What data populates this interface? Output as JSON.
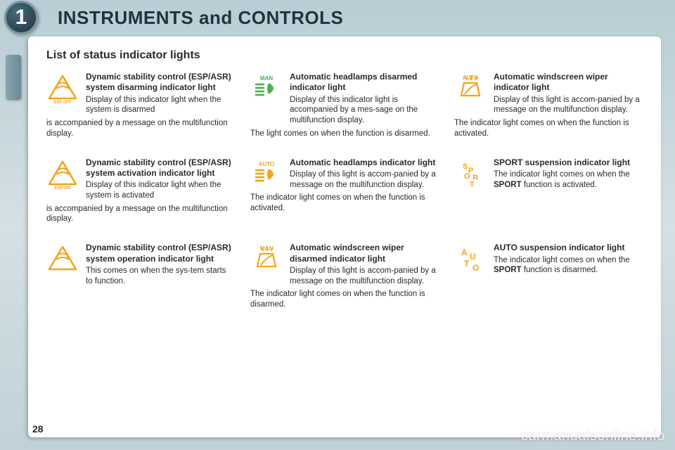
{
  "header": {
    "badge": "1",
    "title": "INSTRUMENTS and CONTROLS"
  },
  "subtitle": "List of status indicator lights",
  "page_number": "28",
  "watermark": "carmanualsonline.info",
  "colors": {
    "amber": "#f5a416",
    "green": "#4caf50"
  },
  "items": [
    {
      "icon": "esp-off",
      "icon_color": "#f5a416",
      "heading": "Dynamic stability control (ESP/ASR) system disarming indicator light",
      "lead": "Display of this indicator light when the system is disarmed",
      "trail": "is accompanied by a message on the multifunction display."
    },
    {
      "icon": "headlamp-man",
      "icon_color": "#4caf50",
      "heading": "Automatic headlamps disarmed indicator light",
      "lead": "Display of this indicator light is accompanied by a mes-sage on the multifunction display.",
      "trail": "The light comes on when the function is disarmed."
    },
    {
      "icon": "wiper-auto",
      "icon_color": "#f5a416",
      "heading": "Automatic windscreen wiper indicator light",
      "lead": "Display of this light is accom-panied by a message on the multifunction display.",
      "trail": "The indicator light comes on when the function is activated."
    },
    {
      "icon": "esp-on",
      "icon_color": "#f5a416",
      "heading": "Dynamic stability control (ESP/ASR) system activation indicator light",
      "lead": "Display of this indicator light when the system is activated",
      "trail": "is accompanied by a message on the multifunction display."
    },
    {
      "icon": "headlamp-auto",
      "icon_color": "#f5a416",
      "heading": "Automatic headlamps indicator light",
      "lead": "Display of this light is accom-panied by a message on the multifunction display.",
      "trail": "The indicator light comes on when the function is activated."
    },
    {
      "icon": "sport",
      "icon_color": "#f5a416",
      "heading": "SPORT suspension indicator light",
      "lead_html": "The indicator light comes on when the <b>SPORT</b> function is activated.",
      "trail": ""
    },
    {
      "icon": "esp-op",
      "icon_color": "#f5a416",
      "heading": "Dynamic stability control (ESP/ASR) system operation indicator light",
      "lead": "This comes on when the sys-tem starts to function.",
      "trail": ""
    },
    {
      "icon": "wiper-man",
      "icon_color": "#f5a416",
      "heading": "Automatic windscreen wiper disarmed indicator light",
      "lead": "Display of this light is accom-panied by a message on the multifunction display.",
      "trail": "The indicator light comes on when the function is disarmed."
    },
    {
      "icon": "auto-susp",
      "icon_color": "#f5a416",
      "heading": "AUTO suspension indicator light",
      "lead_html": "The indicator light comes on when the <b>SPORT</b> function is disarmed.",
      "trail": ""
    }
  ]
}
